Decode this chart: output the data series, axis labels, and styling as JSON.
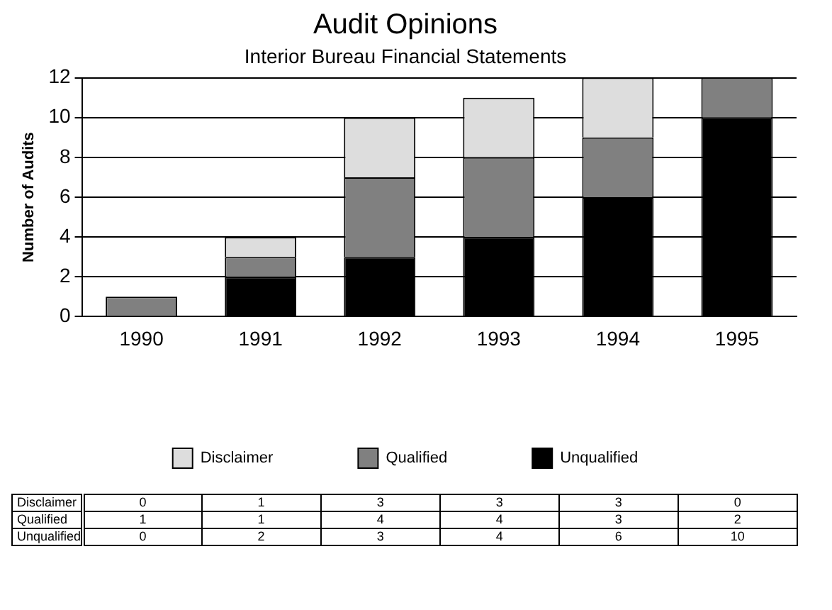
{
  "chart_data": {
    "type": "bar",
    "title": "Audit Opinions",
    "subtitle": "Interior Bureau Financial Statements",
    "ylabel": "Number of Audits",
    "categories": [
      "1990",
      "1991",
      "1992",
      "1993",
      "1994",
      "1995"
    ],
    "series": [
      {
        "name": "Unqualified",
        "color": "#000000",
        "values": [
          0,
          2,
          3,
          4,
          6,
          10
        ],
        "value_labels": [
          "0",
          "2",
          "3",
          "4",
          "6",
          "10"
        ]
      },
      {
        "name": "Qualified",
        "color": "#808080",
        "values": [
          1,
          1,
          4,
          4,
          3,
          2
        ],
        "value_labels": [
          "1",
          "1",
          "4",
          "4",
          "3",
          "2"
        ]
      },
      {
        "name": "Disclaimer",
        "color": "#dddddd",
        "values": [
          0,
          1,
          3,
          3,
          3,
          0
        ],
        "value_labels": [
          "0",
          "1",
          "3",
          "3",
          "3",
          "0"
        ]
      }
    ],
    "stacked": true,
    "ylim": [
      0,
      12
    ],
    "yticks": [
      0,
      2,
      4,
      6,
      8,
      10,
      12
    ],
    "grid": "y",
    "legend": "bottom"
  }
}
